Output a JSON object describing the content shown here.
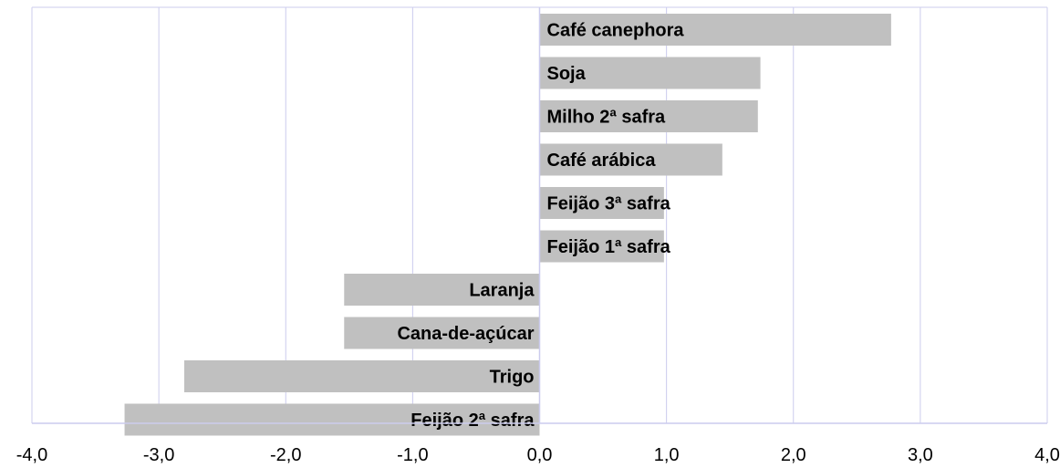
{
  "chart_data": {
    "type": "bar",
    "orientation": "horizontal",
    "title": "",
    "xlabel": "",
    "ylabel": "",
    "xlim": [
      -4,
      4
    ],
    "x_ticks": [
      "-4,0",
      "-3,0",
      "-2,0",
      "-1,0",
      "0,0",
      "1,0",
      "2,0",
      "3,0",
      "4,0"
    ],
    "grid": "vertical",
    "legend": "none",
    "categories": [
      "Café canephora",
      "Soja",
      "Milho 2ª safra",
      "Café arábica",
      "Feijão 3ª safra",
      "Feijão 1ª safra",
      "Laranja",
      "Cana-de-açúcar",
      "Trigo",
      "Feijão 2ª safra"
    ],
    "values": [
      2.77,
      1.74,
      1.72,
      1.44,
      0.98,
      0.98,
      -1.54,
      -1.54,
      -2.8,
      -3.27
    ],
    "colors": {
      "bar": "#c0c0c0",
      "grid": "#ccccee",
      "axis": "#ccccee",
      "text": "#000000"
    }
  }
}
